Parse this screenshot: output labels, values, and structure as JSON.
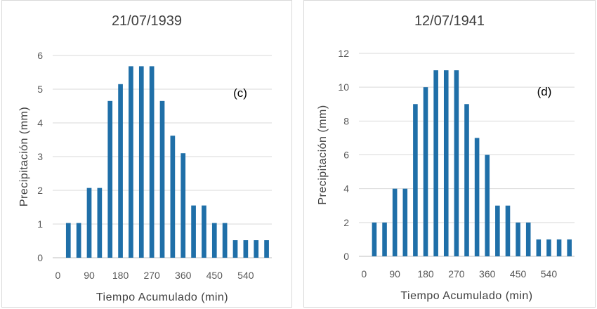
{
  "chart_data": [
    {
      "type": "bar",
      "title": "21/07/1939",
      "annotation": "(c)",
      "xlabel": "Tiempo Acumulado (min)",
      "ylabel": "Precipitación (mm)",
      "ylim": [
        0,
        6
      ],
      "yticks": [
        "0",
        "1",
        "2",
        "3",
        "4",
        "5",
        "6"
      ],
      "xticks": [
        "0",
        "90",
        "180",
        "270",
        "360",
        "450",
        "540"
      ],
      "x": [
        30,
        60,
        90,
        120,
        150,
        180,
        210,
        240,
        270,
        300,
        330,
        360,
        390,
        420,
        450,
        480,
        510,
        540,
        570,
        600
      ],
      "values": [
        1.03,
        1.03,
        2.07,
        2.07,
        4.65,
        5.15,
        5.68,
        5.68,
        5.68,
        4.65,
        3.62,
        3.1,
        1.55,
        1.55,
        1.03,
        1.03,
        0.52,
        0.52,
        0.52,
        0.52
      ],
      "color": "#1f6fa8",
      "grid": true
    },
    {
      "type": "bar",
      "title": "12/07/1941",
      "annotation": "(d)",
      "xlabel": "Tiempo Acumulado (min)",
      "ylabel": "Precipitación (mm)",
      "ylim": [
        0,
        12
      ],
      "yticks": [
        "0",
        "2",
        "4",
        "6",
        "8",
        "10",
        "12"
      ],
      "xticks": [
        "0",
        "90",
        "180",
        "270",
        "360",
        "450",
        "540"
      ],
      "x": [
        30,
        60,
        90,
        120,
        150,
        180,
        210,
        240,
        270,
        300,
        330,
        360,
        390,
        420,
        450,
        480,
        510,
        540,
        570,
        600
      ],
      "values": [
        2,
        2,
        4,
        4,
        9,
        10,
        11,
        11,
        11,
        9,
        7,
        6,
        3,
        3,
        2,
        2,
        1,
        1,
        1,
        1
      ],
      "color": "#1f6fa8",
      "grid": true
    }
  ]
}
